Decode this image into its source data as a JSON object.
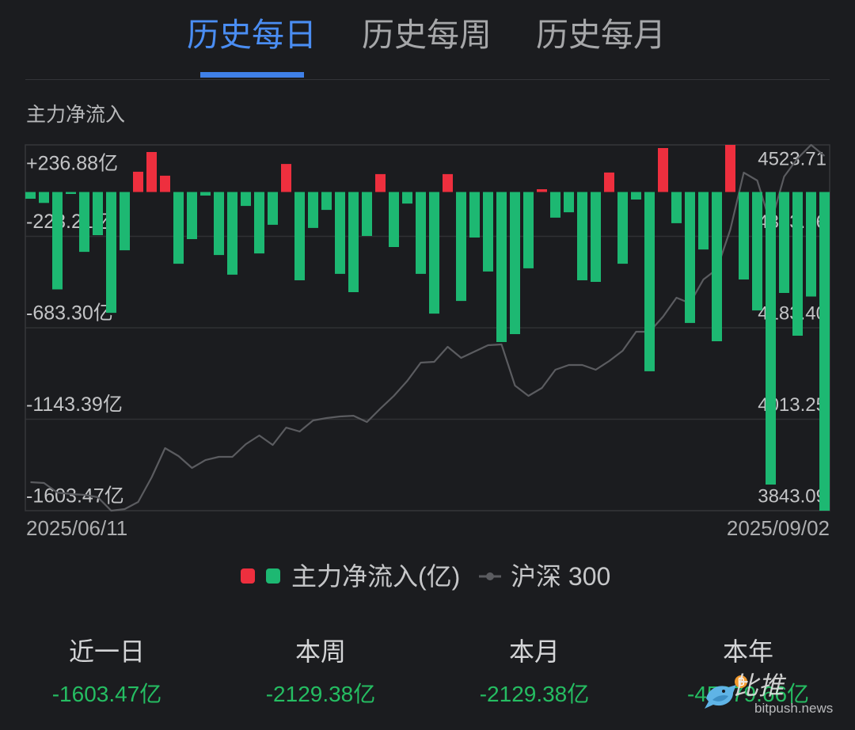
{
  "tabs": [
    {
      "label": "历史每日",
      "active": true
    },
    {
      "label": "历史每周",
      "active": false
    },
    {
      "label": "历史每月",
      "active": false
    }
  ],
  "colors": {
    "background": "#1b1c1f",
    "accent": "#4a8df2",
    "inflow_red": "#ee2f3e",
    "outflow_green": "#1db872",
    "index_line": "#5b5c60",
    "stat_value_green": "#25bd62"
  },
  "chart_data": {
    "type": "bar",
    "title": "主力净流入",
    "x_range": [
      "2025/06/11",
      "2025/09/02"
    ],
    "ylim_left": [
      -1603.47,
      236.88
    ],
    "ylim_right": [
      3843.09,
      4523.71
    ],
    "y_left_ticks": [
      {
        "value": 236.88,
        "label": "+236.88亿"
      },
      {
        "value": -223.21,
        "label": "-223.21亿"
      },
      {
        "value": -683.3,
        "label": "-683.30亿"
      },
      {
        "value": -1143.39,
        "label": "-1143.39亿"
      },
      {
        "value": -1603.47,
        "label": "-1603.47亿"
      }
    ],
    "y_right_ticks": [
      {
        "value": 4523.71,
        "label": "4523.71"
      },
      {
        "value": 4353.56,
        "label": "4353.56"
      },
      {
        "value": 4183.4,
        "label": "4183.40"
      },
      {
        "value": 4013.25,
        "label": "4013.25"
      },
      {
        "value": 3843.09,
        "label": "3843.09"
      }
    ],
    "grid": true,
    "legend_position": "bottom",
    "series": [
      {
        "name": "主力净流入(亿)",
        "type": "bar",
        "axis": "left",
        "values": [
          -34,
          -55,
          -490,
          -10,
          -301,
          -217,
          -608,
          -293,
          102,
          201,
          82,
          -361,
          -237,
          -18,
          -317,
          -416,
          -70,
          -309,
          -165,
          141,
          -444,
          -181,
          -90,
          -412,
          -504,
          -221,
          90,
          -277,
          -58,
          -412,
          -612,
          90,
          -548,
          -229,
          -400,
          -755,
          -715,
          -384,
          14,
          -129,
          -102,
          -444,
          -452,
          98,
          -361,
          -38,
          -902,
          221,
          -157,
          -659,
          -289,
          -751,
          236.88,
          -440,
          -596,
          -1472,
          -508,
          -723,
          -525.91,
          -1603.47
        ]
      },
      {
        "name": "沪深 300",
        "type": "line",
        "axis": "right",
        "values": [
          3896.1,
          3894.6,
          3876.9,
          3874.0,
          3872.5,
          3868.1,
          3843.09,
          3846.0,
          3859.3,
          3904.9,
          3959.4,
          3944.7,
          3922.6,
          3937.3,
          3943.2,
          3943.2,
          3966.8,
          3983.0,
          3965.3,
          3997.7,
          3990.4,
          4011.0,
          4015.4,
          4018.4,
          4019.8,
          4008.1,
          4033.1,
          4056.7,
          4084.7,
          4118.6,
          4120.0,
          4148.0,
          4127.4,
          4139.2,
          4151.0,
          4152.4,
          4075.8,
          4056.7,
          4071.4,
          4105.3,
          4114.1,
          4114.1,
          4105.3,
          4121.5,
          4140.7,
          4176.0,
          4176.0,
          4204.0,
          4239.4,
          4229.0,
          4273.2,
          4292.4,
          4366.1,
          4472.1,
          4457.4,
          4376.4,
          4464.8,
          4498.7,
          4523.71,
          4503.1
        ]
      }
    ]
  },
  "stats": [
    {
      "label": "近一日",
      "value": "-1603.47亿"
    },
    {
      "label": "本周",
      "value": "-2129.38亿"
    },
    {
      "label": "本月",
      "value": "-2129.38亿"
    },
    {
      "label": "本年",
      "value": "-45379.66亿"
    }
  ],
  "watermark": {
    "brand": "比推",
    "domain": "bitpush.news"
  }
}
